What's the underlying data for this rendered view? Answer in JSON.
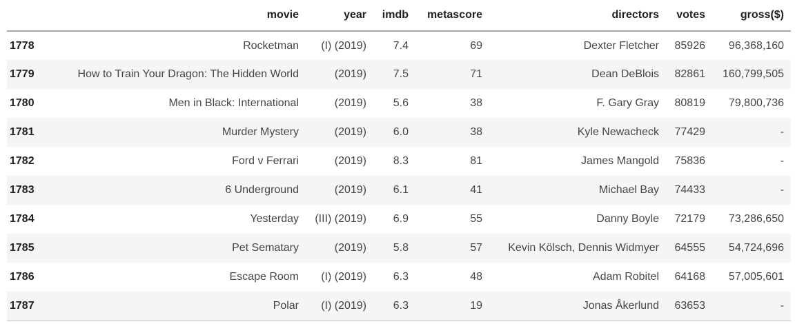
{
  "colors": {
    "stripe": "#f5f5f5",
    "header_border": "#a6a6a6",
    "bottom_border": "#dedede",
    "header_text": "#212121",
    "cell_text": "#454545",
    "page_bg": "#ffffff"
  },
  "table": {
    "columns": [
      {
        "key": "index",
        "label": ""
      },
      {
        "key": "movie",
        "label": "movie"
      },
      {
        "key": "year",
        "label": "year"
      },
      {
        "key": "imdb",
        "label": "imdb"
      },
      {
        "key": "metascore",
        "label": "metascore"
      },
      {
        "key": "directors",
        "label": "directors"
      },
      {
        "key": "votes",
        "label": "votes"
      },
      {
        "key": "gross",
        "label": "gross($)"
      }
    ],
    "rows": [
      {
        "index": "1778",
        "movie": "Rocketman",
        "year": "(I) (2019)",
        "imdb": "7.4",
        "metascore": "69",
        "directors": "Dexter Fletcher",
        "votes": "85926",
        "gross": "96,368,160"
      },
      {
        "index": "1779",
        "movie": "How to Train Your Dragon: The Hidden World",
        "year": "(2019)",
        "imdb": "7.5",
        "metascore": "71",
        "directors": "Dean DeBlois",
        "votes": "82861",
        "gross": "160,799,505"
      },
      {
        "index": "1780",
        "movie": "Men in Black: International",
        "year": "(2019)",
        "imdb": "5.6",
        "metascore": "38",
        "directors": "F. Gary Gray",
        "votes": "80819",
        "gross": "79,800,736"
      },
      {
        "index": "1781",
        "movie": "Murder Mystery",
        "year": "(2019)",
        "imdb": "6.0",
        "metascore": "38",
        "directors": "Kyle Newacheck",
        "votes": "77429",
        "gross": "-"
      },
      {
        "index": "1782",
        "movie": "Ford v Ferrari",
        "year": "(2019)",
        "imdb": "8.3",
        "metascore": "81",
        "directors": "James Mangold",
        "votes": "75836",
        "gross": "-"
      },
      {
        "index": "1783",
        "movie": "6 Underground",
        "year": "(2019)",
        "imdb": "6.1",
        "metascore": "41",
        "directors": "Michael Bay",
        "votes": "74433",
        "gross": "-"
      },
      {
        "index": "1784",
        "movie": "Yesterday",
        "year": "(III) (2019)",
        "imdb": "6.9",
        "metascore": "55",
        "directors": "Danny Boyle",
        "votes": "72179",
        "gross": "73,286,650"
      },
      {
        "index": "1785",
        "movie": "Pet Sematary",
        "year": "(2019)",
        "imdb": "5.8",
        "metascore": "57",
        "directors": "Kevin Kölsch, Dennis Widmyer",
        "votes": "64555",
        "gross": "54,724,696"
      },
      {
        "index": "1786",
        "movie": "Escape Room",
        "year": "(I) (2019)",
        "imdb": "6.3",
        "metascore": "48",
        "directors": "Adam Robitel",
        "votes": "64168",
        "gross": "57,005,601"
      },
      {
        "index": "1787",
        "movie": "Polar",
        "year": "(I) (2019)",
        "imdb": "6.3",
        "metascore": "19",
        "directors": "Jonas Åkerlund",
        "votes": "63653",
        "gross": "-"
      }
    ]
  }
}
